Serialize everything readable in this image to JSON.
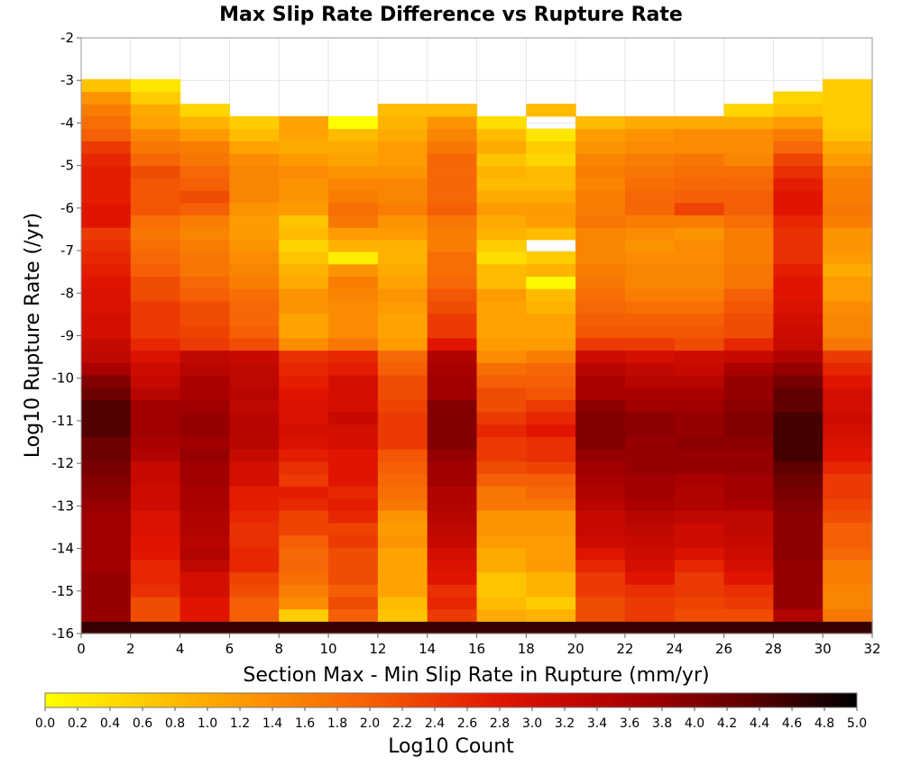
{
  "chart_data": {
    "type": "heatmap",
    "title": "Max Slip Rate Difference vs Rupture Rate",
    "xlabel": "Section Max - Min Slip Rate in Rupture (mm/yr)",
    "ylabel": "Log10 Rupture Rate (/yr)",
    "xlim": [
      0,
      32
    ],
    "ylim": [
      -16,
      -2
    ],
    "x_ticks": [
      "0",
      "2",
      "4",
      "6",
      "8",
      "10",
      "12",
      "14",
      "16",
      "18",
      "20",
      "22",
      "24",
      "26",
      "28",
      "30",
      "32"
    ],
    "y_ticks": [
      "-2",
      "-3",
      "-4",
      "-5",
      "-6",
      "-7",
      "-8",
      "-9",
      "-10",
      "-11",
      "-12",
      "-13",
      "-14",
      "-15",
      "-16"
    ],
    "x_bin_width": 2,
    "y_bin_height": 0.2895,
    "y_bin_starts": [
      -16.0,
      -15.71,
      -15.42,
      -15.13,
      -14.84,
      -14.55,
      -14.26,
      -13.97,
      -13.68,
      -13.39,
      -13.1,
      -12.82,
      -12.53,
      -12.24,
      -11.95,
      -11.66,
      -11.37,
      -11.08,
      -10.79,
      -10.5,
      -10.21,
      -9.92,
      -9.63,
      -9.34,
      -9.05,
      -8.76,
      -8.47,
      -8.18,
      -7.89,
      -7.6,
      -7.31,
      -7.02,
      -6.74,
      -6.45,
      -6.16,
      -5.87,
      -5.58,
      -5.29,
      -5.0,
      -4.71,
      -4.42,
      -4.13,
      -3.84,
      -3.55,
      -3.26
    ],
    "colorbar": {
      "label": "Log10 Count",
      "min": 0.0,
      "max": 5.0,
      "ticks": [
        "0.0",
        "0.2",
        "0.4",
        "0.6",
        "0.8",
        "1.0",
        "1.2",
        "1.4",
        "1.6",
        "1.8",
        "2.0",
        "2.2",
        "2.4",
        "2.6",
        "2.8",
        "3.0",
        "3.2",
        "3.4",
        "3.6",
        "3.8",
        "4.0",
        "4.2",
        "4.4",
        "4.6",
        "4.8",
        "5.0"
      ]
    },
    "log10_counts_by_x_bin": [
      [
        4.6,
        3.8,
        3.8,
        3.8,
        3.8,
        3.7,
        3.7,
        3.7,
        3.7,
        3.7,
        3.8,
        3.9,
        4.0,
        4.1,
        4.2,
        4.2,
        4.4,
        4.4,
        4.4,
        4.2,
        4.0,
        3.6,
        3.3,
        3.2,
        3.0,
        3.0,
        2.9,
        2.9,
        2.8,
        2.7,
        2.6,
        2.5,
        2.4,
        2.8,
        2.8,
        2.7,
        2.7,
        2.7,
        2.6,
        2.4,
        2.0,
        1.8,
        1.6,
        1.3,
        0.7
      ],
      [
        4.6,
        2.2,
        2.2,
        2.5,
        2.6,
        2.6,
        2.8,
        2.8,
        2.9,
        2.9,
        3.1,
        3.1,
        3.2,
        3.2,
        3.5,
        3.6,
        3.7,
        3.7,
        3.7,
        3.4,
        3.2,
        3.1,
        2.9,
        2.6,
        2.4,
        2.4,
        2.4,
        2.2,
        2.2,
        2.0,
        1.9,
        1.8,
        1.7,
        1.8,
        2.1,
        2.1,
        2.1,
        2.2,
        1.9,
        1.7,
        1.5,
        1.1,
        1.0,
        0.6,
        0.3
      ],
      [
        4.6,
        2.8,
        2.8,
        3.0,
        3.0,
        3.3,
        3.5,
        3.4,
        3.5,
        3.5,
        3.6,
        3.6,
        3.7,
        3.7,
        3.8,
        3.7,
        3.8,
        3.8,
        3.7,
        3.6,
        3.6,
        3.4,
        3.3,
        2.4,
        2.3,
        2.2,
        2.2,
        2.0,
        1.9,
        1.7,
        1.7,
        1.6,
        1.5,
        1.6,
        2.0,
        2.2,
        2.0,
        1.9,
        1.7,
        1.6,
        1.2,
        0.9,
        0.5,
        null,
        null
      ],
      [
        4.6,
        2.0,
        2.0,
        2.2,
        2.3,
        2.6,
        2.6,
        2.5,
        2.5,
        2.6,
        2.7,
        2.7,
        3.0,
        3.0,
        3.2,
        3.4,
        3.4,
        3.4,
        3.3,
        3.4,
        3.3,
        3.3,
        3.2,
        2.2,
        2.0,
        1.9,
        1.9,
        1.8,
        1.6,
        1.5,
        1.4,
        1.3,
        1.2,
        1.2,
        1.3,
        1.5,
        1.5,
        1.5,
        1.4,
        1.1,
        0.8,
        0.6,
        null,
        null,
        null
      ],
      [
        4.6,
        0.6,
        1.4,
        1.6,
        1.8,
        1.9,
        1.9,
        2.0,
        2.3,
        2.3,
        2.6,
        2.7,
        2.4,
        2.5,
        2.7,
        2.9,
        3.0,
        2.9,
        2.9,
        2.8,
        2.7,
        2.6,
        2.5,
        1.4,
        1.1,
        1.1,
        1.3,
        1.3,
        1.0,
        0.9,
        0.7,
        0.5,
        0.8,
        0.7,
        1.2,
        1.3,
        1.3,
        1.4,
        1.2,
        1.0,
        1.1,
        1.1,
        null,
        null,
        null
      ],
      [
        4.6,
        2.0,
        2.2,
        2.0,
        2.2,
        2.2,
        2.2,
        2.4,
        2.3,
        2.6,
        2.7,
        2.6,
        2.8,
        2.8,
        2.8,
        3.0,
        3.0,
        3.2,
        3.0,
        3.0,
        3.0,
        2.7,
        2.6,
        1.7,
        1.4,
        1.4,
        1.4,
        1.5,
        1.6,
        1.3,
        0.2,
        0.9,
        1.2,
        1.7,
        1.8,
        1.6,
        1.5,
        1.3,
        1.1,
        1.0,
        0.8,
        0.0,
        null,
        null,
        null
      ],
      [
        4.6,
        0.7,
        0.8,
        1.1,
        1.1,
        1.1,
        1.1,
        1.3,
        1.2,
        1.3,
        1.7,
        1.8,
        1.9,
        2.0,
        2.1,
        2.4,
        2.4,
        2.4,
        2.3,
        2.2,
        2.2,
        2.0,
        1.9,
        1.2,
        1.1,
        1.1,
        1.2,
        1.3,
        1.1,
        1.0,
        0.9,
        0.9,
        1.2,
        1.3,
        1.6,
        1.5,
        1.5,
        1.3,
        1.2,
        1.2,
        1.0,
        0.9,
        0.8,
        null,
        null
      ],
      [
        4.6,
        2.4,
        2.6,
        2.5,
        2.8,
        2.9,
        3.0,
        3.2,
        3.3,
        3.4,
        3.5,
        3.5,
        3.7,
        3.7,
        3.8,
        4.0,
        4.0,
        4.0,
        4.0,
        3.7,
        3.7,
        3.6,
        3.5,
        2.8,
        2.4,
        2.4,
        2.2,
        2.1,
        1.9,
        1.8,
        1.8,
        1.6,
        1.6,
        1.7,
        2.0,
        1.9,
        1.9,
        1.9,
        1.9,
        1.7,
        1.5,
        1.3,
        0.8,
        null,
        null
      ],
      [
        4.6,
        1.0,
        0.8,
        0.7,
        0.7,
        1.0,
        1.0,
        1.2,
        1.3,
        1.3,
        1.7,
        1.7,
        2.0,
        2.2,
        2.4,
        2.4,
        2.6,
        2.4,
        2.2,
        2.2,
        2.0,
        1.8,
        1.4,
        1.2,
        1.1,
        1.1,
        1.1,
        1.2,
        0.8,
        0.8,
        0.4,
        0.6,
        0.9,
        1.0,
        1.2,
        1.0,
        0.8,
        0.9,
        0.7,
        1.0,
        0.8,
        0.4,
        null,
        null,
        null
      ],
      [
        4.6,
        0.9,
        0.6,
        0.9,
        0.9,
        1.2,
        1.2,
        1.2,
        1.3,
        1.3,
        1.7,
        1.9,
        2.0,
        2.3,
        2.5,
        2.5,
        2.8,
        2.6,
        2.4,
        2.1,
        2.0,
        1.9,
        1.6,
        1.2,
        1.1,
        1.1,
        0.9,
        0.8,
        0.1,
        0.9,
        0.6,
        null,
        0.8,
        1.2,
        1.2,
        1.0,
        0.8,
        0.8,
        0.5,
        0.6,
        0.3,
        null,
        0.8,
        null,
        null
      ],
      [
        4.6,
        2.2,
        2.2,
        2.4,
        2.4,
        2.6,
        2.8,
        3.1,
        3.2,
        3.2,
        3.4,
        3.5,
        3.6,
        3.7,
        3.8,
        4.0,
        4.0,
        4.0,
        3.9,
        3.6,
        3.6,
        3.4,
        3.1,
        2.4,
        2.1,
        2.0,
        1.9,
        1.8,
        1.7,
        1.6,
        1.5,
        1.5,
        1.5,
        1.7,
        1.6,
        1.6,
        1.5,
        1.6,
        1.5,
        1.3,
        1.2,
        0.8,
        null,
        null,
        null
      ],
      [
        4.6,
        2.4,
        2.4,
        2.5,
        2.8,
        3.0,
        3.1,
        3.2,
        3.3,
        3.4,
        3.6,
        3.7,
        3.7,
        3.8,
        3.8,
        3.8,
        3.9,
        3.9,
        3.7,
        3.6,
        3.4,
        3.3,
        3.0,
        2.4,
        2.1,
        2.0,
        1.8,
        1.6,
        1.5,
        1.5,
        1.4,
        1.3,
        1.4,
        1.6,
        1.9,
        1.9,
        1.8,
        1.7,
        1.6,
        1.4,
        1.3,
        1.0,
        null,
        null,
        null
      ],
      [
        4.6,
        2.2,
        2.3,
        2.4,
        2.4,
        2.6,
        2.9,
        3.1,
        3.1,
        3.3,
        3.5,
        3.5,
        3.6,
        3.8,
        3.8,
        3.9,
        3.8,
        3.8,
        3.7,
        3.6,
        3.4,
        3.2,
        3.1,
        2.2,
        2.1,
        2.0,
        1.8,
        1.6,
        1.5,
        1.5,
        1.4,
        1.4,
        1.3,
        1.6,
        2.3,
        2.0,
        1.9,
        1.8,
        1.7,
        1.4,
        1.4,
        1.0,
        null,
        null,
        null
      ],
      [
        4.6,
        2.2,
        2.4,
        2.5,
        2.8,
        3.0,
        3.1,
        3.2,
        3.3,
        3.3,
        3.6,
        3.7,
        3.7,
        3.8,
        3.8,
        3.9,
        4.0,
        4.0,
        3.9,
        3.8,
        3.8,
        3.6,
        3.2,
        2.6,
        2.2,
        2.2,
        2.1,
        2.0,
        1.7,
        1.7,
        1.6,
        1.6,
        1.6,
        1.8,
        2.0,
        2.0,
        1.9,
        1.8,
        1.5,
        1.4,
        1.4,
        1.0,
        0.5,
        null,
        null
      ],
      [
        4.6,
        3.5,
        3.8,
        3.8,
        3.8,
        3.8,
        3.9,
        3.9,
        3.9,
        3.9,
        4.0,
        4.1,
        4.2,
        4.3,
        4.5,
        4.5,
        4.5,
        4.5,
        4.3,
        4.3,
        4.1,
        3.8,
        3.5,
        3.2,
        3.1,
        3.0,
        2.9,
        2.8,
        2.8,
        2.7,
        2.5,
        2.5,
        2.5,
        2.6,
        2.8,
        2.8,
        2.7,
        2.5,
        2.3,
        1.9,
        1.6,
        1.2,
        0.7,
        0.5,
        null
      ],
      [
        4.6,
        1.7,
        1.5,
        1.5,
        1.6,
        1.6,
        1.9,
        2.0,
        2.0,
        2.2,
        2.3,
        2.4,
        2.4,
        2.6,
        2.8,
        2.9,
        3.0,
        3.1,
        3.0,
        3.0,
        2.8,
        2.6,
        2.4,
        1.7,
        1.5,
        1.5,
        1.4,
        1.2,
        1.2,
        1.0,
        1.2,
        1.3,
        1.3,
        1.6,
        1.7,
        1.6,
        1.6,
        1.5,
        1.2,
        1.0,
        0.7,
        0.6,
        0.6,
        0.6,
        0.6
      ]
    ]
  }
}
